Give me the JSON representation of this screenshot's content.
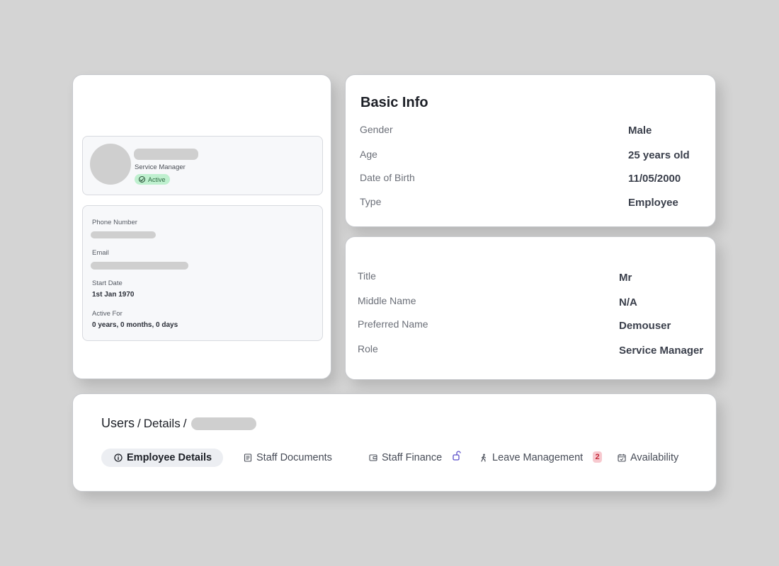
{
  "profile": {
    "job_title": "Service Manager",
    "status": "Active",
    "status_color": "#bff0cf",
    "phone_label": "Phone Number",
    "email_label": "Email",
    "start_date_label": "Start Date",
    "start_date_value": "1st Jan 1970",
    "active_for_label": "Active For",
    "active_for_value": "0 years, 0 months, 0 days"
  },
  "basic_info": {
    "title": "Basic Info",
    "rows": [
      {
        "label": "Gender",
        "value": "Male"
      },
      {
        "label": "Age",
        "value": "25 years old"
      },
      {
        "label": "Date of Birth",
        "value": "11/05/2000"
      },
      {
        "label": "Type",
        "value": "Employee"
      }
    ]
  },
  "name_info": {
    "rows": [
      {
        "label": "Title",
        "value": "Mr"
      },
      {
        "label": "Middle Name",
        "value": "N/A"
      },
      {
        "label": "Preferred Name",
        "value": "Demouser"
      },
      {
        "label": "Role",
        "value": "Service Manager"
      }
    ]
  },
  "navigation": {
    "breadcrumb": [
      "Users",
      "Details"
    ],
    "tabs": [
      {
        "label": "Employee Details",
        "icon": "info-icon",
        "active": true
      },
      {
        "label": "Staff Documents",
        "icon": "document-icon"
      },
      {
        "label": "Staff Finance",
        "icon": "wallet-icon"
      },
      {
        "label": "Leave Management",
        "icon": "walking-person-icon",
        "badge": "2"
      },
      {
        "label": "Availability",
        "icon": "calendar-icon"
      }
    ],
    "accent_color": "#5b4fc9",
    "badge_color": "#c42a3a"
  }
}
